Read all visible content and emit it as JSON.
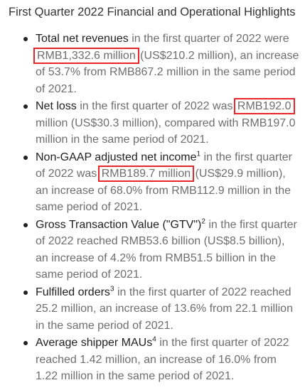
{
  "title": "First Quarter 2022 Financial and Operational Highlights",
  "bullets": [
    {
      "term": "Total net revenues",
      "sup": "",
      "pre": " in the first quarter of 2022 were ",
      "boxed": "RMB1,332.6 million",
      "post": " (US$210.2 million), an increase of 53.7% from RMB867.2 million in the same period of 2021."
    },
    {
      "term": "Net loss",
      "sup": "",
      "pre": " in the first quarter of 2022 was ",
      "boxed": "RMB192.0",
      "post": " million (US$30.3 million), compared with RMB197.0 million in the same period of 2021."
    },
    {
      "term": "Non-GAAP adjusted net income",
      "sup": "1",
      "pre": " in the first quarter of 2022 was ",
      "boxed": "RMB189.7 million",
      "post": " (US$29.9 million), an increase of 68.0% from RMB112.9 million in the same period of 2021."
    },
    {
      "term": "Gross Transaction Value (\"GTV\")",
      "sup": "2",
      "pre": " in the first quarter of 2022 reached RMB53.6 billion (US$8.5 billion), an increase of 4.2% from RMB51.5 billion in the same period of 2021.",
      "boxed": "",
      "post": ""
    },
    {
      "term": "Fulfilled orders",
      "sup": "3",
      "pre": " in the first quarter of 2022 reached 25.2 million, an increase of 13.6% from 22.1 million in the same period of 2021.",
      "boxed": "",
      "post": ""
    },
    {
      "term": "Average shipper MAUs",
      "sup": "4",
      "pre": " in the first quarter of 2022 reached 1.42 million, an increase of 16.0% from 1.22 million in the same period of 2021.",
      "boxed": "",
      "post": ""
    }
  ]
}
